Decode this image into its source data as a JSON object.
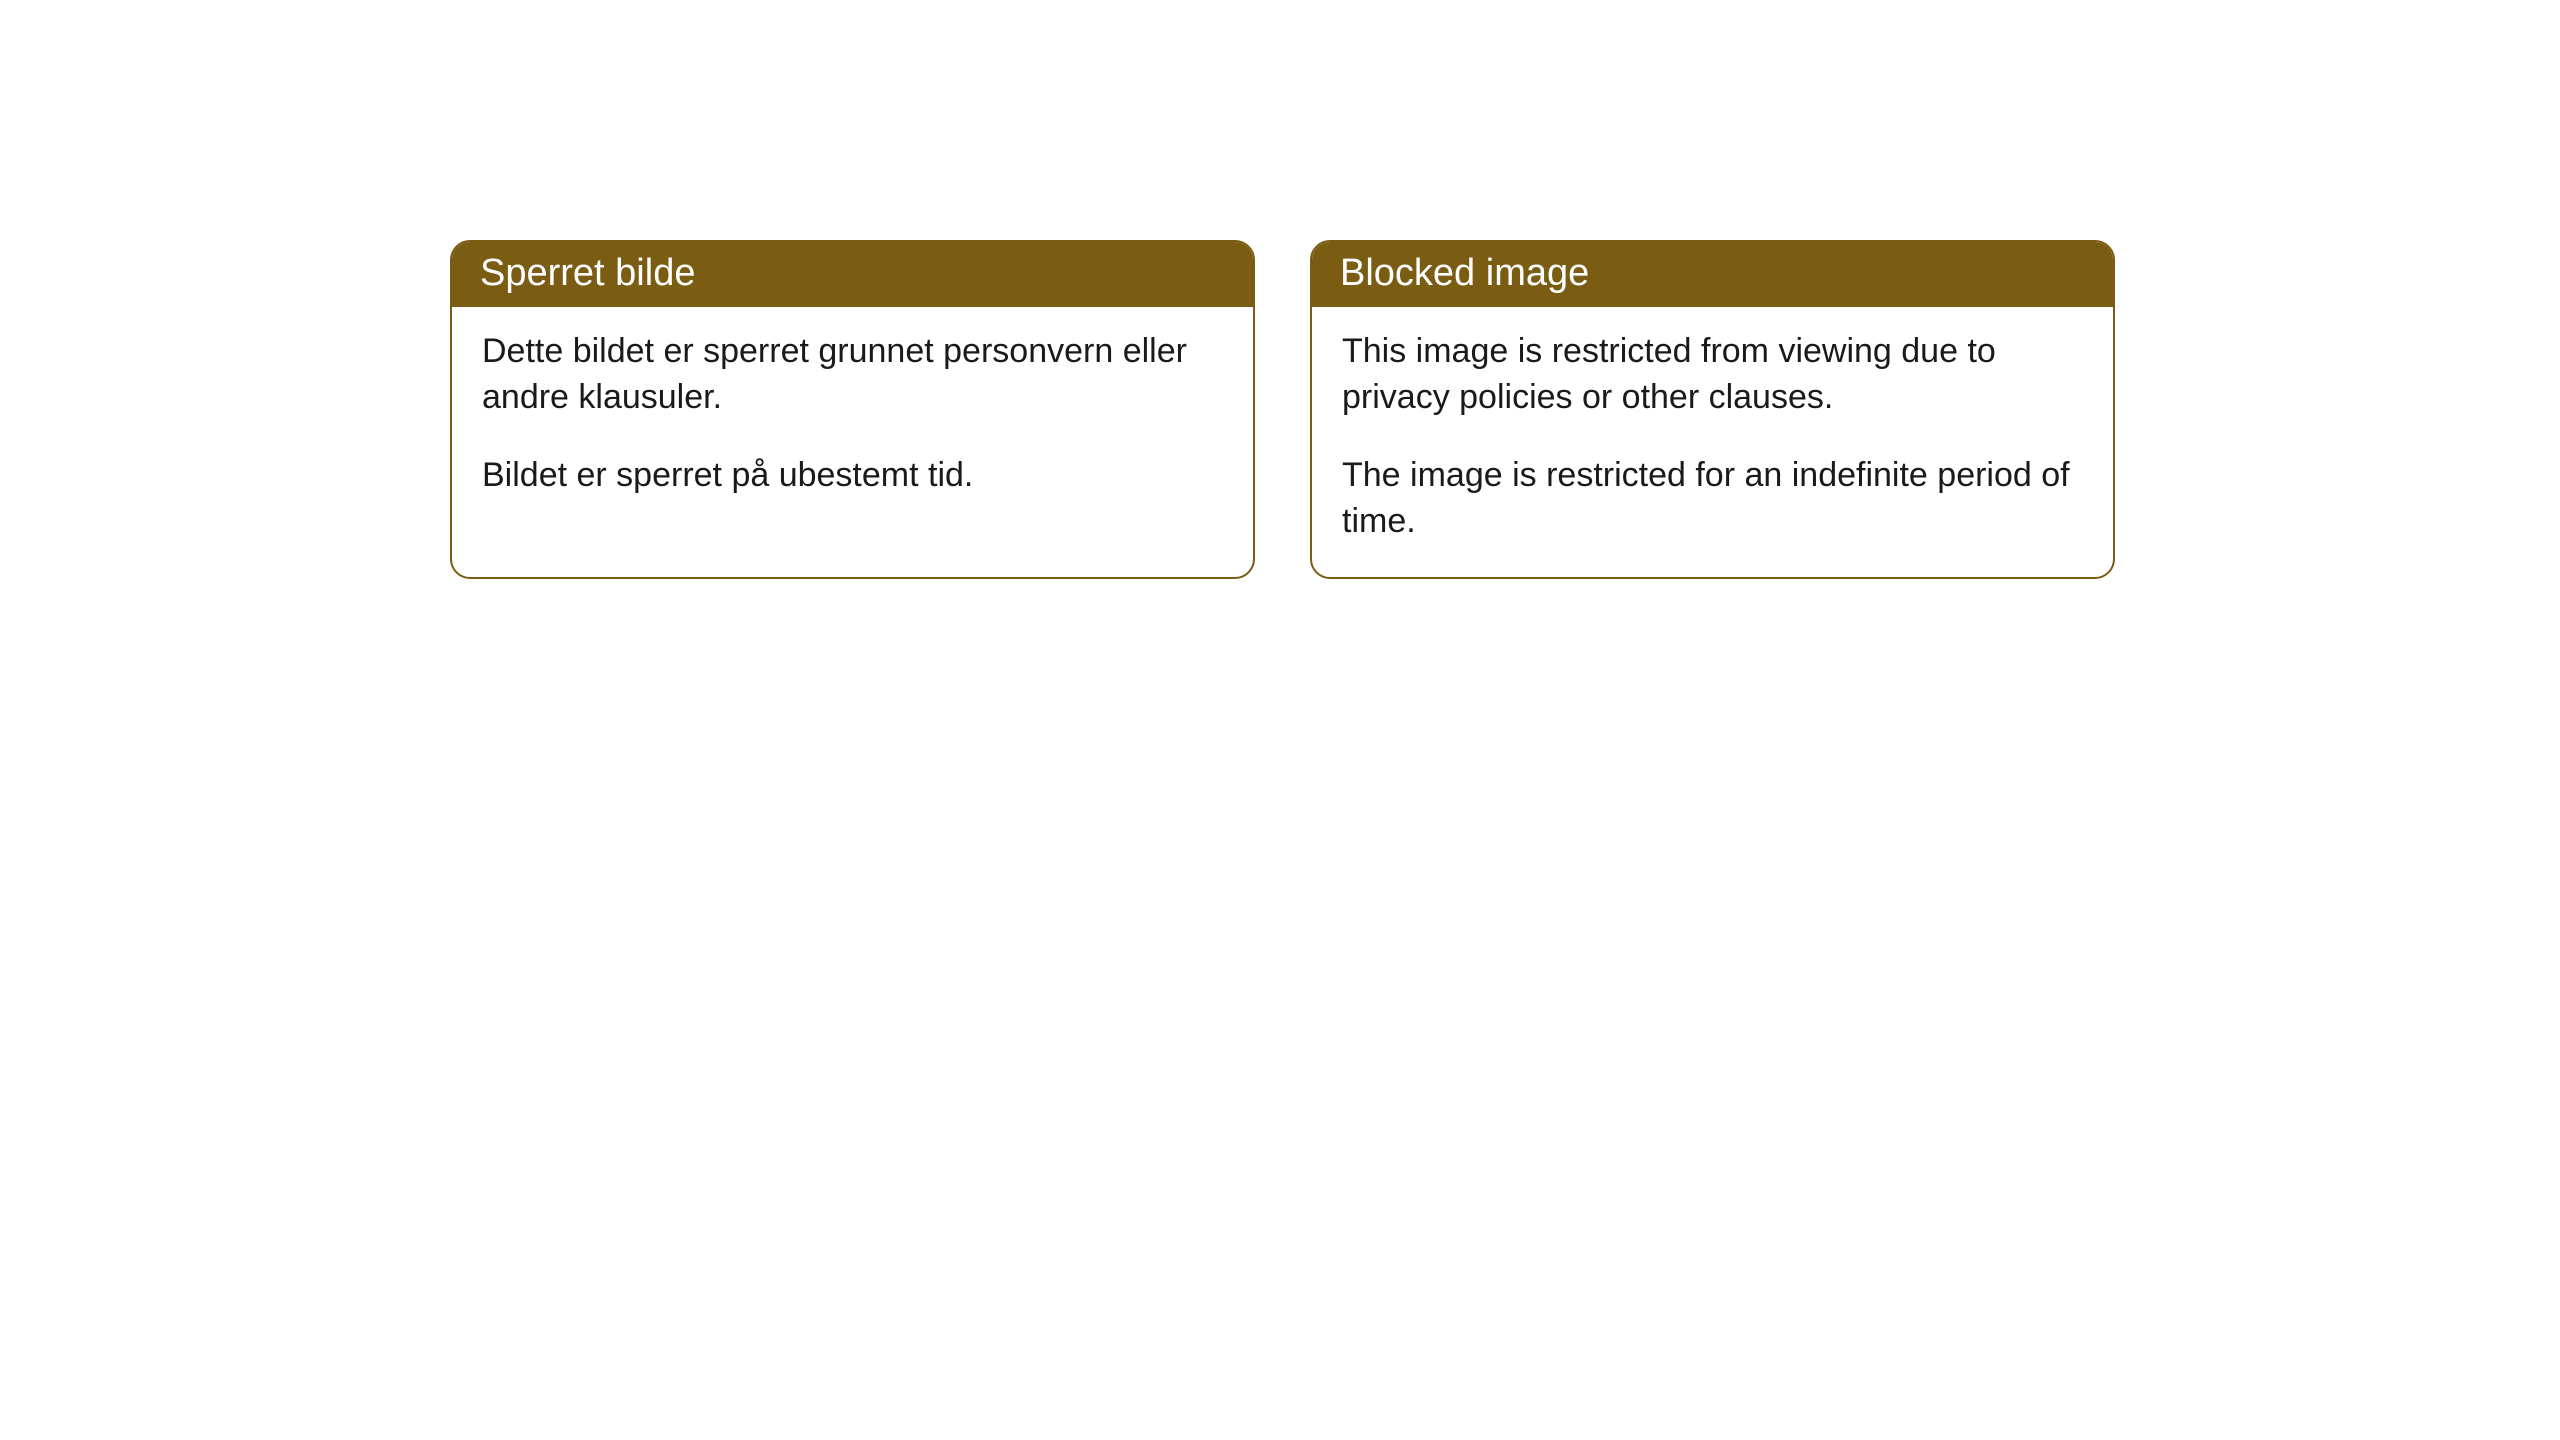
{
  "cards": [
    {
      "title": "Sperret bilde",
      "paragraph1": "Dette bildet er sperret grunnet personvern eller andre klausuler.",
      "paragraph2": "Bildet er sperret på ubestemt tid."
    },
    {
      "title": "Blocked image",
      "paragraph1": "This image is restricted from viewing due to privacy policies or other clauses.",
      "paragraph2": "The image is restricted for an indefinite period of time."
    }
  ],
  "styling": {
    "header_bg_color": "#7a5c13",
    "header_text_color": "#ffffff",
    "body_text_color": "#1a1a1a",
    "card_border_color": "#7a5c13",
    "card_bg_color": "#ffffff",
    "page_bg_color": "#ffffff",
    "header_fontsize": 38,
    "body_fontsize": 34,
    "border_radius": 20
  }
}
